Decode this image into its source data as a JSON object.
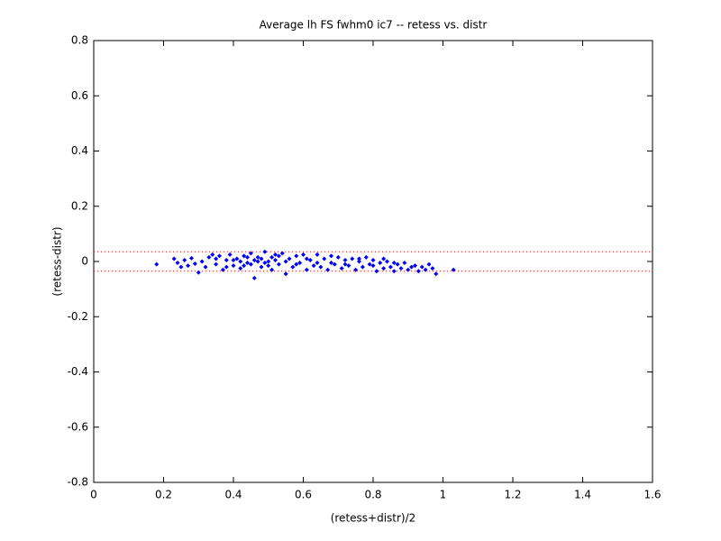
{
  "chart_data": {
    "type": "scatter",
    "title": "Average lh FS fwhm0 ic7 -- retess vs. distr",
    "x_label": "(retess+distr)/2",
    "y_label": "(retess-distr)",
    "xlim": [
      0,
      1.6
    ],
    "ylim": [
      -0.8,
      0.8
    ],
    "xticks": [
      0,
      0.2,
      0.4,
      0.6,
      0.8,
      1,
      1.2,
      1.4,
      1.6
    ],
    "yticks": [
      -0.8,
      -0.6,
      -0.4,
      -0.2,
      0,
      0.2,
      0.4,
      0.6,
      0.8
    ],
    "grid": false,
    "reference_lines": [
      {
        "value": 0.035,
        "color": "#ff0000"
      },
      {
        "value": -0.035,
        "color": "#ff0000"
      }
    ],
    "series": [
      {
        "color": "#0000ff",
        "x": [
          0.18,
          0.23,
          0.24,
          0.25,
          0.26,
          0.27,
          0.28,
          0.29,
          0.3,
          0.31,
          0.32,
          0.33,
          0.34,
          0.35,
          0.36,
          0.37,
          0.38,
          0.39,
          0.4,
          0.41,
          0.42,
          0.43,
          0.44,
          0.45,
          0.46,
          0.47,
          0.48,
          0.49,
          0.5,
          0.51,
          0.52,
          0.53,
          0.54,
          0.55,
          0.56,
          0.57,
          0.58,
          0.59,
          0.6,
          0.61,
          0.62,
          0.63,
          0.64,
          0.65,
          0.66,
          0.67,
          0.68,
          0.69,
          0.7,
          0.71,
          0.72,
          0.73,
          0.74,
          0.75,
          0.76,
          0.77,
          0.78,
          0.79,
          0.8,
          0.81,
          0.82,
          0.83,
          0.84,
          0.85,
          0.86,
          0.87,
          0.88,
          0.89,
          0.9,
          0.91,
          0.92,
          0.93,
          0.94,
          0.95,
          0.96,
          0.97,
          0.98,
          1.03,
          0.35,
          0.38,
          0.42,
          0.44,
          0.46,
          0.48,
          0.5,
          0.52,
          0.53,
          0.55,
          0.58,
          0.61,
          0.64,
          0.68,
          0.72,
          0.76,
          0.8,
          0.83,
          0.86,
          0.45,
          0.49,
          0.51,
          0.47,
          0.43,
          0.4
        ],
        "values": [
          -0.01,
          0.01,
          -0.005,
          -0.02,
          0.005,
          -0.015,
          0.012,
          -0.008,
          -0.04,
          0.0,
          -0.02,
          0.015,
          0.025,
          -0.01,
          0.02,
          -0.03,
          0.005,
          0.025,
          -0.015,
          0.01,
          -0.025,
          0.02,
          -0.005,
          0.03,
          -0.06,
          0.015,
          -0.02,
          0.035,
          0.0,
          -0.03,
          0.025,
          -0.01,
          0.03,
          -0.045,
          0.01,
          -0.02,
          0.02,
          -0.005,
          0.025,
          -0.03,
          0.005,
          -0.015,
          0.025,
          -0.02,
          0.01,
          -0.03,
          0.02,
          -0.01,
          0.015,
          -0.025,
          0.005,
          -0.015,
          0.01,
          -0.03,
          0.0,
          -0.02,
          0.015,
          -0.01,
          0.005,
          -0.035,
          -0.005,
          -0.025,
          0.0,
          -0.02,
          -0.035,
          -0.01,
          -0.025,
          -0.005,
          -0.03,
          -0.02,
          -0.015,
          -0.035,
          -0.02,
          -0.03,
          -0.01,
          -0.025,
          -0.045,
          -0.03,
          0.01,
          -0.02,
          0.0,
          0.015,
          0.005,
          0.01,
          -0.015,
          0.005,
          0.02,
          0.0,
          -0.01,
          0.01,
          -0.005,
          -0.005,
          -0.01,
          0.01,
          -0.015,
          0.01,
          -0.005,
          -0.01,
          -0.005,
          0.015,
          0.0,
          -0.015,
          0.005
        ]
      }
    ]
  }
}
